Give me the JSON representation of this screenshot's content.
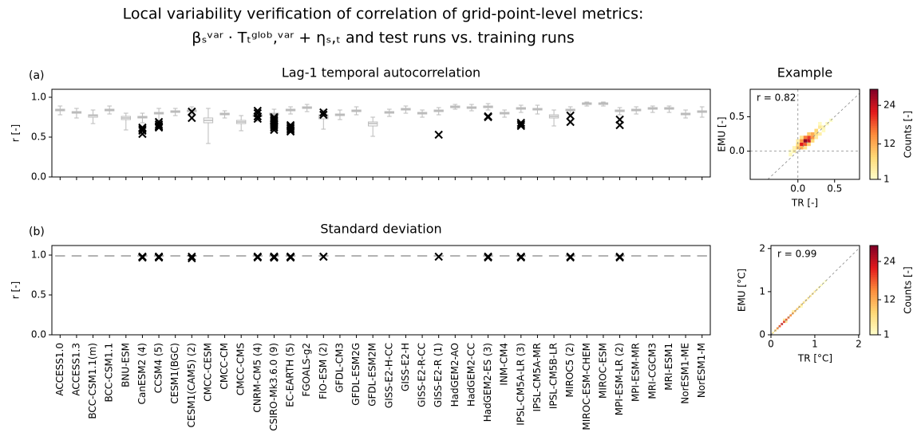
{
  "title": "Local variability verification of correlation of grid-point-level metrics:",
  "subtitle": "βₛᵛᵃʳ · Tₜᵍˡᵒᵇ,ᵛᵃʳ + ηₛ,ₜ and test runs vs. training runs",
  "chart_data": [
    {
      "type": "box",
      "panel_label": "(a)",
      "title": "Lag-1 temporal autocorrelation",
      "y_label": "r [-]",
      "ylim": [
        0,
        1.1
      ],
      "yticks": [
        {
          "value": 0,
          "label": "0.0"
        },
        {
          "value": 0.5,
          "label": "0.5"
        },
        {
          "value": 1,
          "label": "1.0"
        }
      ],
      "box_color": "#bbbbbb",
      "test_color": "#000000",
      "boxes": [
        [
          0.78,
          0.83,
          0.84,
          0.85,
          0.89
        ],
        [
          0.74,
          0.8,
          0.81,
          0.82,
          0.86
        ],
        [
          0.67,
          0.75,
          0.77,
          0.78,
          0.84
        ],
        [
          0.79,
          0.83,
          0.84,
          0.85,
          0.89
        ],
        [
          0.59,
          0.72,
          0.74,
          0.76,
          0.8
        ],
        [
          0.68,
          0.74,
          0.75,
          0.76,
          0.8
        ],
        [
          0.71,
          0.79,
          0.8,
          0.81,
          0.86
        ],
        [
          0.77,
          0.81,
          0.82,
          0.83,
          0.86
        ],
        [
          0.78,
          0.82,
          0.83,
          0.84,
          0.88
        ],
        [
          0.42,
          0.68,
          0.71,
          0.74,
          0.86
        ],
        [
          0.74,
          0.78,
          0.79,
          0.8,
          0.83
        ],
        [
          0.58,
          0.67,
          0.69,
          0.71,
          0.77
        ],
        [
          0.7,
          0.76,
          0.77,
          0.78,
          0.83
        ],
        [
          0.72,
          0.78,
          0.79,
          0.8,
          0.85
        ],
        [
          0.79,
          0.83,
          0.84,
          0.85,
          0.88
        ],
        [
          0.82,
          0.86,
          0.87,
          0.88,
          0.91
        ],
        [
          0.6,
          0.73,
          0.76,
          0.78,
          0.84
        ],
        [
          0.72,
          0.77,
          0.78,
          0.79,
          0.84
        ],
        [
          0.78,
          0.82,
          0.83,
          0.84,
          0.88
        ],
        [
          0.51,
          0.64,
          0.67,
          0.69,
          0.75
        ],
        [
          0.76,
          0.8,
          0.81,
          0.82,
          0.85
        ],
        [
          0.8,
          0.84,
          0.85,
          0.86,
          0.89
        ],
        [
          0.75,
          0.79,
          0.8,
          0.81,
          0.84
        ],
        [
          0.78,
          0.82,
          0.83,
          0.84,
          0.87
        ],
        [
          0.85,
          0.87,
          0.88,
          0.89,
          0.91
        ],
        [
          0.83,
          0.86,
          0.87,
          0.88,
          0.91
        ],
        [
          0.84,
          0.87,
          0.88,
          0.89,
          0.92
        ],
        [
          0.75,
          0.79,
          0.8,
          0.81,
          0.84
        ],
        [
          0.81,
          0.85,
          0.86,
          0.87,
          0.9
        ],
        [
          0.79,
          0.84,
          0.85,
          0.86,
          0.9
        ],
        [
          0.64,
          0.74,
          0.76,
          0.78,
          0.84
        ],
        [
          0.78,
          0.83,
          0.84,
          0.85,
          0.88
        ],
        [
          0.89,
          0.91,
          0.92,
          0.93,
          0.94
        ],
        [
          0.89,
          0.91,
          0.92,
          0.93,
          0.94
        ],
        [
          0.78,
          0.82,
          0.83,
          0.84,
          0.87
        ],
        [
          0.79,
          0.83,
          0.84,
          0.85,
          0.88
        ],
        [
          0.81,
          0.85,
          0.86,
          0.87,
          0.89
        ],
        [
          0.81,
          0.85,
          0.86,
          0.87,
          0.89
        ],
        [
          0.74,
          0.78,
          0.79,
          0.8,
          0.84
        ],
        [
          0.75,
          0.81,
          0.82,
          0.83,
          0.88
        ]
      ],
      "test_runs": [
        [],
        [],
        [],
        [],
        [],
        [
          0.62,
          0.6,
          0.58,
          0.54
        ],
        [
          0.69,
          0.66,
          0.64,
          0.63,
          0.62
        ],
        [],
        [
          0.82,
          0.74
        ],
        [],
        [],
        [],
        [
          0.83,
          0.8,
          0.76,
          0.73
        ],
        [
          0.75,
          0.73,
          0.71,
          0.7,
          0.68,
          0.66,
          0.64,
          0.62,
          0.59
        ],
        [
          0.65,
          0.63,
          0.61,
          0.59,
          0.57
        ],
        [],
        [
          0.81,
          0.78
        ],
        [],
        [],
        [],
        [],
        [],
        [],
        [
          0.53
        ],
        [],
        [],
        [
          0.76,
          0.76,
          0.75
        ],
        [],
        [
          0.68,
          0.66,
          0.64
        ],
        [],
        [],
        [
          0.77,
          0.69
        ],
        [],
        [],
        [
          0.72,
          0.65
        ],
        [],
        [],
        [],
        [],
        []
      ]
    },
    {
      "type": "box",
      "panel_label": "(b)",
      "title": "Standard deviation",
      "y_label": "r [-]",
      "ylim": [
        0,
        1.12
      ],
      "yticks": [
        {
          "value": 0,
          "label": "0.0"
        },
        {
          "value": 0.5,
          "label": "0.5"
        },
        {
          "value": 1,
          "label": "1.0"
        }
      ],
      "box_color": "#999999",
      "test_color": "#000000",
      "categories": [
        "ACCESS1.0",
        "ACCESS1.3",
        "BCC-CSM1.1(m)",
        "BCC-CSM1.1",
        "BNU-ESM",
        "CanESM2 (4)",
        "CCSM4 (5)",
        "CESM1(BGC)",
        "CESM1(CAM5) (2)",
        "CMCC-CESM",
        "CMCC-CM",
        "CMCC-CMS",
        "CNRM-CM5 (4)",
        "CSIRO-Mk3.6.0 (9)",
        "EC-EARTH (5)",
        "FGOALS-g2",
        "FIO-ESM (2)",
        "GFDL-CM3",
        "GFDL-ESM2G",
        "GFDL-ESM2M",
        "GISS-E2-H-CC",
        "GISS-E2-H",
        "GISS-E2-R-CC",
        "GISS-E2-R (1)",
        "HadGEM2-AO",
        "HadGEM2-CC",
        "HadGEM2-ES (3)",
        "INM-CM4",
        "IPSL-CM5A-LR (3)",
        "IPSL-CM5A-MR",
        "IPSL-CM5B-LR",
        "MIROC5 (2)",
        "MIROC-ESM-CHEM",
        "MIROC-ESM",
        "MPI-ESM-LR (2)",
        "MPI-ESM-MR",
        "MRI-CGCM3",
        "MRI-ESM1",
        "NorESM1-ME",
        "NorESM1-M"
      ],
      "values": [
        0.99,
        0.99,
        0.99,
        0.99,
        0.99,
        0.99,
        0.99,
        0.99,
        0.99,
        0.99,
        0.99,
        0.99,
        0.99,
        0.99,
        0.99,
        0.99,
        0.99,
        0.99,
        0.99,
        0.99,
        0.99,
        0.99,
        0.99,
        0.99,
        0.99,
        0.99,
        0.99,
        0.99,
        0.99,
        0.99,
        0.99,
        0.99,
        0.99,
        0.99,
        0.99,
        0.99,
        0.99,
        0.99,
        0.99,
        0.99
      ],
      "test_runs": [
        [],
        [],
        [],
        [],
        [],
        [
          0.98,
          0.98,
          0.97,
          0.97
        ],
        [
          0.98,
          0.98,
          0.98,
          0.97,
          0.97
        ],
        [],
        [
          0.98,
          0.96
        ],
        [],
        [],
        [],
        [
          0.98,
          0.98,
          0.98,
          0.97
        ],
        [
          0.98,
          0.98,
          0.98,
          0.98,
          0.97,
          0.97,
          0.97,
          0.97,
          0.97
        ],
        [
          0.98,
          0.98,
          0.98,
          0.97,
          0.97
        ],
        [],
        [
          0.98,
          0.98
        ],
        [],
        [],
        [],
        [],
        [],
        [],
        [
          0.98
        ],
        [],
        [],
        [
          0.98,
          0.98,
          0.97
        ],
        [],
        [
          0.98,
          0.98,
          0.97
        ],
        [],
        [],
        [
          0.98,
          0.97
        ],
        [],
        [],
        [
          0.98,
          0.97
        ],
        [],
        [],
        [],
        [],
        []
      ]
    },
    {
      "type": "heatmap",
      "title": "Example",
      "x_label": "TR [-]",
      "y_label": "EMU [-]",
      "annotation": "r = 0.82",
      "colorbar_label": "Counts [-]",
      "zero_lines": true,
      "xlim": [
        -0.65,
        0.84
      ],
      "ylim": [
        -0.41,
        0.9
      ],
      "xticks": [
        {
          "value": 0,
          "label": "0.0"
        },
        0.5
      ],
      "yticks": [
        {
          "value": 0,
          "label": "0.0"
        },
        0.5
      ],
      "clim": [
        1,
        29
      ],
      "cticks": [
        1,
        12,
        24
      ],
      "bin_width": 0.05,
      "colormap": [
        "#ffffcc",
        "#fed976",
        "#fd8d3c",
        "#e31a1c",
        "#800026"
      ],
      "x": [
        0.1,
        0.05,
        0.15,
        0.1,
        0.15,
        0.05,
        0.2,
        0,
        0.2,
        0.1,
        0.25,
        0,
        0.15,
        0.05,
        0.25,
        0.3,
        -0.05,
        -0.05,
        0.3,
        0.2,
        0.35,
        0.15,
        0.1,
        -0.1,
        0.4,
        0.25,
        0.05,
        0,
        0.35,
        0.45,
        -0.1,
        0.3
      ],
      "y": [
        0.15,
        0.1,
        0.2,
        0.1,
        0.15,
        0.15,
        0.25,
        0.05,
        0.2,
        0.2,
        0.3,
        0.1,
        0.1,
        0.05,
        0.25,
        0.35,
        0,
        0.05,
        0.25,
        0.15,
        0.35,
        0.25,
        0.05,
        -0.05,
        0.4,
        0.2,
        0.2,
        0.15,
        0.3,
        0.45,
        0,
        0.4
      ],
      "values": [
        28,
        22,
        20,
        18,
        24,
        14,
        12,
        10,
        14,
        16,
        8,
        7,
        9,
        12,
        7,
        5,
        4,
        3,
        4,
        8,
        3,
        9,
        6,
        2,
        2,
        5,
        6,
        4,
        2,
        1,
        1,
        2
      ]
    },
    {
      "type": "heatmap",
      "x_label": "TR [°C]",
      "y_label": "EMU [°C]",
      "annotation": "r = 0.99",
      "colorbar_label": "Counts [-]",
      "zero_lines": false,
      "xlim": [
        0,
        2.02
      ],
      "ylim": [
        0,
        2.07
      ],
      "xticks": [
        0,
        1,
        2
      ],
      "yticks": [
        0,
        1,
        2
      ],
      "clim": [
        1,
        29
      ],
      "cticks": [
        1,
        12,
        24
      ],
      "bin_width": 0.05,
      "colormap": [
        "#ffffcc",
        "#fed976",
        "#fd8d3c",
        "#e31a1c",
        "#800026"
      ],
      "x": [
        0.05,
        0.1,
        0.15,
        0.2,
        0.25,
        0.3,
        0.35,
        0.4,
        0.45,
        0.5,
        0.55,
        0.6,
        0.65,
        0.7,
        0.75,
        0.8,
        0.85,
        0.9,
        0.95,
        1,
        1.05,
        1.1,
        1.15,
        1.2,
        1.25,
        0.3,
        0.35,
        0.5,
        0.7
      ],
      "y": [
        0.05,
        0.1,
        0.15,
        0.2,
        0.25,
        0.3,
        0.35,
        0.4,
        0.45,
        0.5,
        0.55,
        0.6,
        0.65,
        0.7,
        0.75,
        0.8,
        0.85,
        0.9,
        0.95,
        1,
        1.05,
        1.1,
        1.15,
        1.2,
        1.25,
        0.35,
        0.3,
        0.55,
        0.65
      ],
      "values": [
        4,
        8,
        14,
        18,
        22,
        20,
        18,
        16,
        14,
        12,
        10,
        9,
        8,
        7,
        6,
        6,
        5,
        5,
        5,
        4,
        3,
        2,
        2,
        1,
        1,
        6,
        5,
        3,
        2
      ]
    }
  ]
}
